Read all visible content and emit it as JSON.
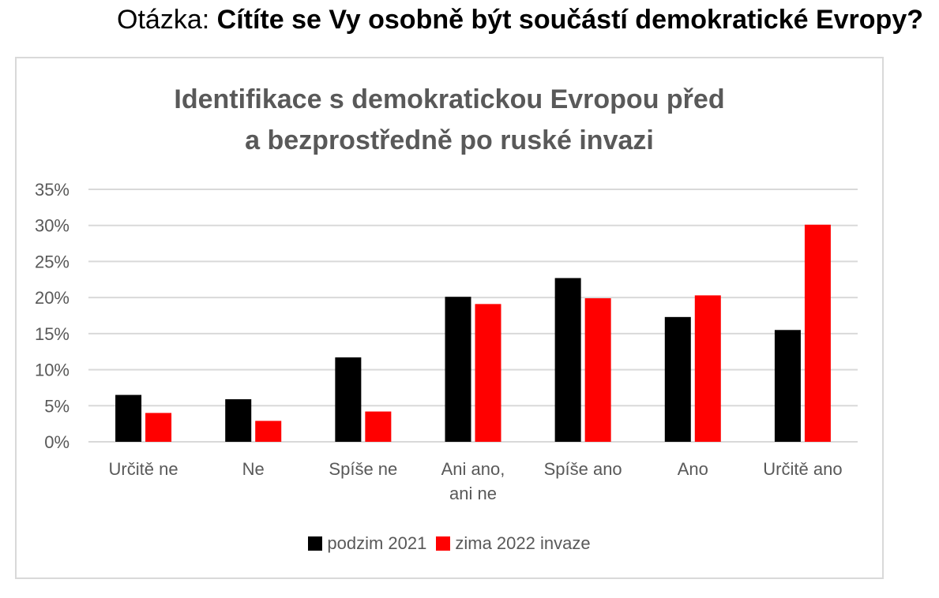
{
  "question": {
    "prefix": "Otázka: ",
    "text": "Cítíte se Vy osobně být součástí demokratické Evropy?"
  },
  "chart_data": {
    "type": "bar",
    "title_lines": [
      "Identifikace s demokratickou Evropou před",
      "a bezprostředně po ruské invazi"
    ],
    "categories": [
      [
        "Určitě ne"
      ],
      [
        "Ne"
      ],
      [
        "Spíše ne"
      ],
      [
        "Ani ano,",
        "ani ne"
      ],
      [
        "Spíše ano"
      ],
      [
        "Ano"
      ],
      [
        "Určitě ano"
      ]
    ],
    "series": [
      {
        "name": "podzim 2021",
        "color": "#000000",
        "values": [
          6.5,
          5.9,
          11.7,
          20.1,
          22.7,
          17.3,
          15.5
        ]
      },
      {
        "name": "zima 2022 invaze",
        "color": "#ff0000",
        "values": [
          4.0,
          2.9,
          4.2,
          19.1,
          19.9,
          20.3,
          30.1
        ]
      }
    ],
    "y_ticks": [
      "0%",
      "5%",
      "10%",
      "15%",
      "20%",
      "25%",
      "30%",
      "35%"
    ],
    "ylim": [
      0,
      35
    ],
    "grid": true,
    "legend_position": "bottom"
  }
}
